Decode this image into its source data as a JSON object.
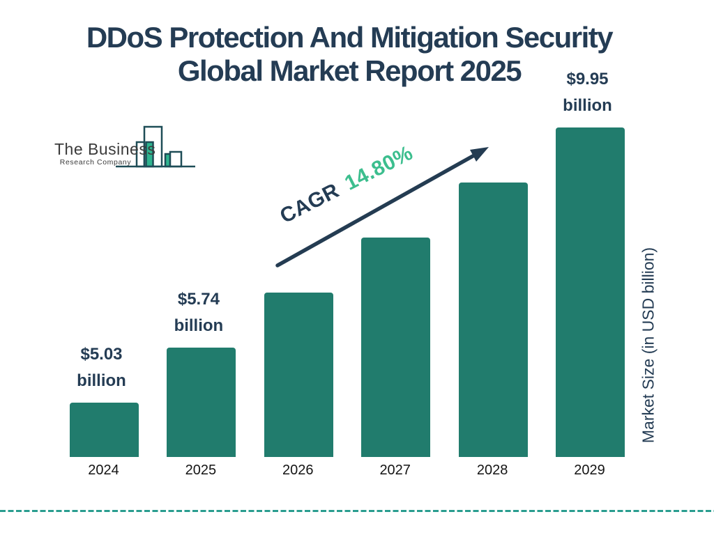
{
  "page": {
    "background": "#ffffff"
  },
  "title": {
    "line1": "DDoS Protection And Mitigation Security",
    "line2": "Global Market Report 2025",
    "color": "#243C54"
  },
  "logo": {
    "name_line1": "The Business",
    "name_line2": "Research Company",
    "outline_color": "#1E4D57",
    "fill_color": "#2FB48F"
  },
  "cagr": {
    "prefix": "CAGR",
    "value": "14.80%",
    "prefix_color": "#243C54",
    "value_color": "#3CBE8E"
  },
  "y_axis": {
    "label": "Market Size (in USD billion)"
  },
  "chart_data": {
    "type": "bar",
    "title": "DDoS Protection And Mitigation Security Global Market Report 2025",
    "categories": [
      "2024",
      "2025",
      "2026",
      "2027",
      "2028",
      "2029"
    ],
    "values": [
      5.03,
      5.74,
      6.59,
      7.56,
      8.67,
      9.95
    ],
    "values_note": "Only 2024, 2025 and 2029 carry data labels in the chart; 2026-2028 estimated from the 14.80% CAGR",
    "data_labels": [
      {
        "value": "$5.03",
        "unit": "billion"
      },
      {
        "value": "$5.74",
        "unit": "billion"
      },
      null,
      null,
      null,
      {
        "value": "$9.95",
        "unit": "billion"
      }
    ],
    "xlabel": "",
    "ylabel": "Market Size (in USD billion)",
    "cagr_label": "CAGR 14.80%",
    "bar_color": "#217C6D",
    "label_color": "#243C54",
    "tick_color": "#141414",
    "grid": false,
    "legend": "none"
  },
  "decorations": {
    "dashed_line_color": "#2A9D8F",
    "arrow_color": "#243C52"
  }
}
